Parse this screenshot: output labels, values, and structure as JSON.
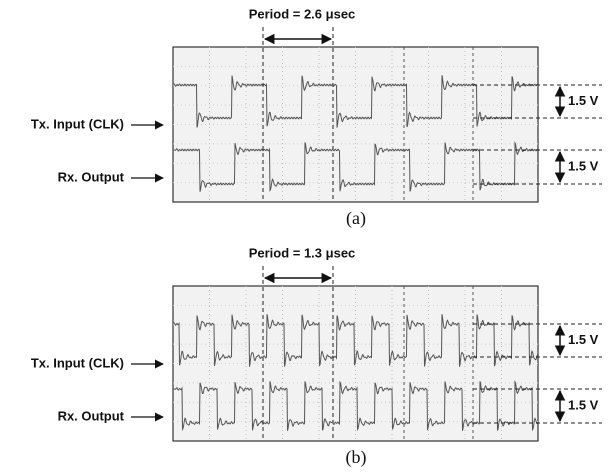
{
  "panels": [
    {
      "period_label": "Period = 2.6 μsec",
      "tx_label": "Tx. Input (CLK)",
      "rx_label": "Rx. Output",
      "tx_voltage": "1.5 V",
      "rx_voltage": "1.5 V",
      "caption": "(a)"
    },
    {
      "period_label": "Period = 1.3 μsec",
      "tx_label": "Tx. Input (CLK)",
      "rx_label": "Rx. Output",
      "tx_voltage": "1.5 V",
      "rx_voltage": "1.5 V",
      "caption": "(b)"
    }
  ]
}
